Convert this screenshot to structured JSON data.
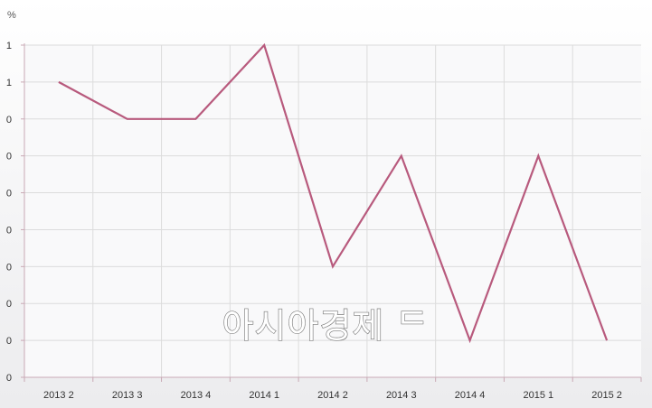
{
  "chart_data": {
    "type": "line",
    "unit_label": "%",
    "categories": [
      "2013 2",
      "2013 3",
      "2013 4",
      "2014 1",
      "2014 2",
      "2014 3",
      "2014 4",
      "2015 1",
      "2015 2"
    ],
    "y_tick_labels": [
      "0",
      "0",
      "0",
      "0",
      "0",
      "0",
      "0",
      "0",
      "1",
      "1"
    ],
    "ylim": [
      0,
      9
    ],
    "series": [
      {
        "values": [
          8,
          7,
          7,
          9,
          3,
          6,
          1,
          6,
          1
        ],
        "color": "#b85a7d"
      }
    ],
    "grid": true,
    "legend": "none"
  },
  "watermark": "아시아경제 ᄃ",
  "colors": {
    "line": "#b85a7d",
    "axis": "#c9a9b5",
    "grid": "#dcdcdc",
    "plot_bg": "#f9f9fa"
  }
}
